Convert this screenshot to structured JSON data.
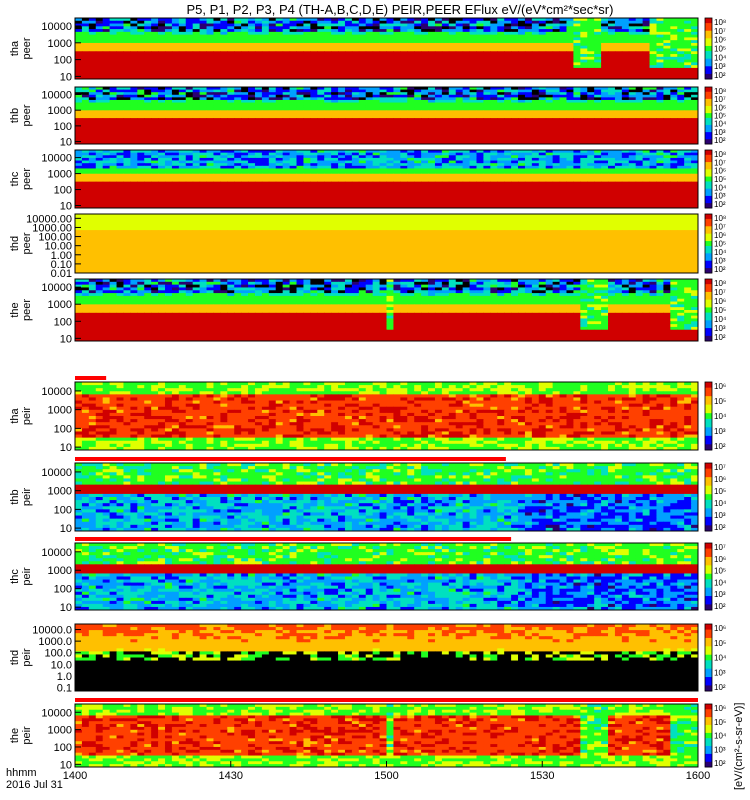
{
  "title": "P5, P1, P2, P3, P4 (TH-A,B,C,D,E) PEIR,PEER EFlux eV/(eV*cm²*sec*sr)",
  "colorbar_label": "[eV/(cm²-s-sr-eV)]",
  "chart_data": {
    "type": "heatmap",
    "time_axis": {
      "tick_labels": [
        "1400",
        "1430",
        "1500",
        "1530",
        "1600"
      ],
      "tick_values_min": [
        0,
        30,
        60,
        90,
        120
      ],
      "range_min": [
        0,
        120
      ],
      "label_line1": "hhmm",
      "label_line2": "2016 Jul 31"
    },
    "panels": [
      {
        "id": "tha-peer",
        "probe": "tha",
        "species": "peer",
        "y_ticks": [
          "10000",
          "1000",
          "100",
          "10"
        ],
        "y_tick_values": [
          10000,
          1000,
          100,
          10
        ],
        "ylim": [
          7,
          30000
        ],
        "log": true,
        "cbar_ticks": [
          "10⁸",
          "10⁷",
          "10⁶",
          "10⁵",
          "10⁴",
          "10³",
          "10²"
        ],
        "pattern": "peer-a",
        "dropouts_min": [
          [
            96,
            101
          ],
          [
            111,
            120
          ]
        ]
      },
      {
        "id": "thb-peer",
        "probe": "thb",
        "species": "peer",
        "y_ticks": [
          "10000",
          "1000",
          "100",
          "10"
        ],
        "y_tick_values": [
          10000,
          1000,
          100,
          10
        ],
        "ylim": [
          7,
          30000
        ],
        "log": true,
        "cbar_ticks": [
          "10⁸",
          "10⁷",
          "10⁶",
          "10⁵",
          "10⁴",
          "10³",
          "10²"
        ],
        "pattern": "peer-b"
      },
      {
        "id": "thc-peer",
        "probe": "thc",
        "species": "peer",
        "y_ticks": [
          "10000",
          "1000",
          "100",
          "10"
        ],
        "y_tick_values": [
          10000,
          1000,
          100,
          10
        ],
        "ylim": [
          7,
          30000
        ],
        "log": true,
        "cbar_ticks": [
          "10⁸",
          "10⁷",
          "10⁶",
          "10⁵",
          "10⁴",
          "10³",
          "10²"
        ],
        "pattern": "peer-c"
      },
      {
        "id": "thd-peer",
        "probe": "thd",
        "species": "peer",
        "y_ticks": [
          "10000.00",
          "1000.00",
          "100.00",
          "10.00",
          "1.00",
          "0.10",
          "0.01"
        ],
        "y_tick_values": [
          10000,
          1000,
          100,
          10,
          1,
          0.1,
          0.01
        ],
        "ylim": [
          0.01,
          30000
        ],
        "log": true,
        "cbar_ticks": [
          "10⁸",
          "10⁷",
          "10⁶",
          "10⁵",
          "10⁴",
          "10³",
          "10²"
        ],
        "pattern": "peer-d"
      },
      {
        "id": "the-peer",
        "probe": "the",
        "species": "peer",
        "y_ticks": [
          "10000",
          "1000",
          "100",
          "10"
        ],
        "y_tick_values": [
          10000,
          1000,
          100,
          10
        ],
        "ylim": [
          7,
          30000
        ],
        "log": true,
        "cbar_ticks": [
          "10⁸",
          "10⁷",
          "10⁶",
          "10⁵",
          "10⁴",
          "10³",
          "10²"
        ],
        "pattern": "peer-e",
        "dropouts_min": [
          [
            60,
            62
          ],
          [
            98,
            102
          ],
          [
            115,
            120
          ]
        ]
      },
      {
        "id": "tha-peir",
        "probe": "tha",
        "species": "peir",
        "y_ticks": [
          "10000",
          "1000",
          "100",
          "10"
        ],
        "y_tick_values": [
          10000,
          1000,
          100,
          10
        ],
        "ylim": [
          7,
          30000
        ],
        "log": true,
        "cbar_ticks": [
          "10⁶",
          "10⁵",
          "10⁴",
          "10³",
          "10²"
        ],
        "pattern": "peir-a",
        "mode_bar_min": [
          [
            0,
            6
          ]
        ]
      },
      {
        "id": "thb-peir",
        "probe": "thb",
        "species": "peir",
        "y_ticks": [
          "10000",
          "1000",
          "100",
          "10"
        ],
        "y_tick_values": [
          10000,
          1000,
          100,
          10
        ],
        "ylim": [
          7,
          30000
        ],
        "log": true,
        "cbar_ticks": [
          "10⁷",
          "10⁶",
          "10⁵",
          "10⁴",
          "10³",
          "10²"
        ],
        "pattern": "peir-b",
        "mode_bar_min": [
          [
            0,
            83
          ]
        ]
      },
      {
        "id": "thc-peir",
        "probe": "thc",
        "species": "peir",
        "y_ticks": [
          "10000",
          "1000",
          "100",
          "10"
        ],
        "y_tick_values": [
          10000,
          1000,
          100,
          10
        ],
        "ylim": [
          7,
          30000
        ],
        "log": true,
        "cbar_ticks": [
          "10⁷",
          "10⁶",
          "10⁵",
          "10⁴",
          "10³",
          "10²"
        ],
        "pattern": "peir-c",
        "mode_bar_min": [
          [
            0,
            84
          ]
        ]
      },
      {
        "id": "thd-peir",
        "probe": "thd",
        "species": "peir",
        "y_ticks": [
          "10000.0",
          "1000.0",
          "100.0",
          "10.0",
          "1.0",
          "0.1"
        ],
        "y_tick_values": [
          10000,
          1000,
          100,
          10,
          1,
          0.1
        ],
        "ylim": [
          0.05,
          30000
        ],
        "log": true,
        "cbar_ticks": [
          "10⁶",
          "10⁵",
          "10⁴",
          "10³",
          "10²"
        ],
        "pattern": "peir-d"
      },
      {
        "id": "the-peir",
        "probe": "the",
        "species": "peir",
        "y_ticks": [
          "10000",
          "1000",
          "100",
          "10"
        ],
        "y_tick_values": [
          10000,
          1000,
          100,
          10
        ],
        "ylim": [
          7,
          30000
        ],
        "log": true,
        "cbar_ticks": [
          "10⁶",
          "10⁵",
          "10⁴",
          "10³",
          "10²"
        ],
        "pattern": "peir-e",
        "mode_bar_min": [
          [
            0,
            120
          ]
        ],
        "dropouts_min": [
          [
            60,
            62
          ],
          [
            98,
            102
          ],
          [
            115,
            120
          ]
        ]
      }
    ],
    "colormap": [
      "#2a0070",
      "#0000ff",
      "#00a0ff",
      "#00e0c0",
      "#20ff20",
      "#e0ff00",
      "#ffc000",
      "#ff4000",
      "#d00000"
    ]
  }
}
